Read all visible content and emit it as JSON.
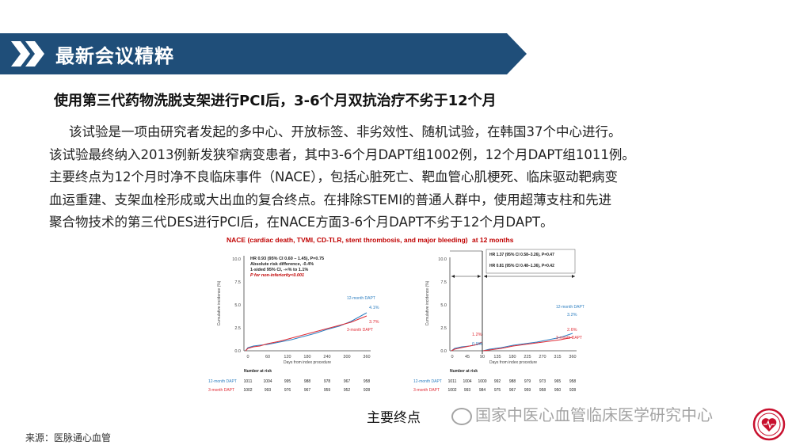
{
  "header": {
    "title": "最新会议精粹"
  },
  "subtitle": "使用第三代药物洗脱支架进行PCI后，3-6个月双抗治疗不劣于12个月",
  "body_lines": [
    "该试验是一项由研究者发起的多中心、开放标签、非劣效性、随机试验，在韩国37个中心进行。",
    "该试验最终纳入2013例新发狭窄病变患者，其中3-6个月DAPT组1002例，12个月DAPT组1011例。",
    "主要终点为12个月时净不良临床事件（NACE），包括心脏死亡、靶血管心肌梗死、临床驱动靶病变",
    "血运重建、支架血栓形成或大出血的复合终点。在排除STEMI的普通人群中，使用超薄支柱和先进",
    "聚合物技术的第三代DES进行PCI后，在NACE方面3-6个月DAPT不劣于12个月DAPT。"
  ],
  "figure": {
    "title_main": "NACE (cardiac death, TVMI, CD-TLR, stent thrombosis, and major bleeding)",
    "title_suffix": "at 12 months",
    "left": {
      "stats": [
        "HR 0.93 (95% CI 0.60 – 1.45), P=0.75",
        "Absolute risk difference, -0.4%",
        "1-sided 95% CI, -∞% to 1.1%",
        "P for non-inferiority<0.001"
      ],
      "series_12": {
        "label": "12-month DAPT",
        "end": "4.1%"
      },
      "series_3": {
        "label": "3-month DAPT",
        "end": "3.7%"
      },
      "risk_12": [
        "1011",
        "1004",
        "995",
        "988",
        "978",
        "967",
        "958"
      ],
      "risk_3": [
        "1002",
        "993",
        "976",
        "967",
        "959",
        "952",
        "928"
      ],
      "x_ticks": [
        "0",
        "60",
        "120",
        "180",
        "240",
        "300",
        "360"
      ]
    },
    "right": {
      "stats": [
        "HR 1.37 (95% CI 0.58–3.26), P=0.47",
        "HR 0.81 (95% CI 0.48–1.36), P=0.42"
      ],
      "series_12": {
        "label": "12-month DAPT",
        "end": "3.2%"
      },
      "series_3": {
        "label": "3-month DAPT",
        "end": "2.6%"
      },
      "early_12": "1.2%",
      "early_3": "0.9%",
      "risk_12": [
        "1011",
        "1004",
        "1000",
        "992",
        "988",
        "979",
        "973",
        "965",
        "958"
      ],
      "risk_3": [
        "1002",
        "993",
        "984",
        "975",
        "967",
        "959",
        "958",
        "950",
        "928"
      ],
      "x_ticks": [
        "0",
        "45",
        "90",
        "135",
        "180",
        "225",
        "270",
        "315",
        "360"
      ]
    },
    "y_ticks": [
      "0.0",
      "2.5",
      "5.0",
      "7.5",
      "10.0"
    ],
    "ylabel": "Cumulative incidence (%)",
    "xlabel": "Days from index procedure",
    "risk_title": "Number at risk",
    "risk_label_12": "12-month DAPT",
    "risk_label_3": "3-month DAPT",
    "color_12": "#2d7fc1",
    "color_3": "#e02b35"
  },
  "caption": "主要终点",
  "source": "来源：医脉通心血管",
  "watermark": "国家中医心血管临床医学研究中心",
  "colors": {
    "banner": "#1f4e79",
    "banner_arrow": "#5b7fa6"
  }
}
